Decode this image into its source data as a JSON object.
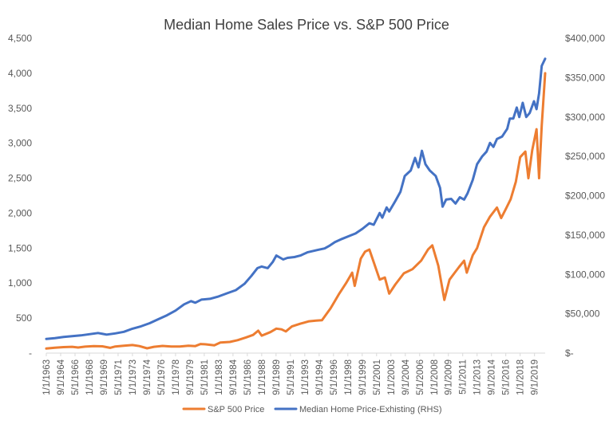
{
  "chart_data": {
    "type": "line",
    "title": "Median Home Sales Price vs. S&P 500 Price",
    "xlabel": "",
    "ylabel": "",
    "y_left": {
      "min": 0,
      "max": 4500,
      "step": 500,
      "grid": false
    },
    "y_right": {
      "min": 0,
      "max": 400000,
      "step": 50000
    },
    "left_tick_labels": [
      "-",
      "500",
      "1,000",
      "1,500",
      "2,000",
      "2,500",
      "3,000",
      "3,500",
      "4,000",
      "4,500"
    ],
    "right_tick_labels": [
      "$-",
      "$50,000",
      "$100,000",
      "$150,000",
      "$200,000",
      "$250,000",
      "$300,000",
      "$350,000",
      "$400,000"
    ],
    "x_range": [
      1963.0,
      2020.9
    ],
    "x_tick_labels": [
      "1/1/1963",
      "9/1/1964",
      "5/1/1966",
      "1/1/1968",
      "9/1/1969",
      "5/1/1971",
      "1/1/1973",
      "9/1/1974",
      "5/1/1976",
      "1/1/1978",
      "9/1/1979",
      "5/1/1981",
      "1/1/1983",
      "9/1/1984",
      "5/1/1986",
      "1/1/1988",
      "9/1/1989",
      "5/1/1991",
      "1/1/1993",
      "9/1/1994",
      "5/1/1996",
      "1/1/1998",
      "9/1/1999",
      "5/1/2001",
      "1/1/2003",
      "9/1/2004",
      "5/1/2006",
      "1/1/2008",
      "9/1/2009",
      "5/1/2011",
      "1/1/2013",
      "9/1/2014",
      "5/1/2016",
      "1/1/2018",
      "9/1/2019"
    ],
    "legend_position": "bottom",
    "series": [
      {
        "name": "S&P 500 Price",
        "axis": "left",
        "color": "#ED7D31",
        "points": [
          [
            1963.0,
            65
          ],
          [
            1964.0,
            78
          ],
          [
            1965.0,
            85
          ],
          [
            1966.0,
            90
          ],
          [
            1966.7,
            80
          ],
          [
            1967.5,
            92
          ],
          [
            1968.5,
            100
          ],
          [
            1969.5,
            97
          ],
          [
            1970.4,
            75
          ],
          [
            1971.0,
            95
          ],
          [
            1972.0,
            105
          ],
          [
            1973.0,
            115
          ],
          [
            1973.8,
            100
          ],
          [
            1974.7,
            68
          ],
          [
            1975.5,
            90
          ],
          [
            1976.5,
            102
          ],
          [
            1977.5,
            95
          ],
          [
            1978.5,
            95
          ],
          [
            1979.5,
            105
          ],
          [
            1980.3,
            100
          ],
          [
            1980.9,
            130
          ],
          [
            1981.5,
            125
          ],
          [
            1982.5,
            112
          ],
          [
            1983.2,
            150
          ],
          [
            1984.3,
            160
          ],
          [
            1985.2,
            185
          ],
          [
            1986.2,
            225
          ],
          [
            1987.0,
            260
          ],
          [
            1987.6,
            320
          ],
          [
            1988.0,
            250
          ],
          [
            1989.0,
            300
          ],
          [
            1989.7,
            350
          ],
          [
            1990.3,
            340
          ],
          [
            1990.8,
            310
          ],
          [
            1991.5,
            380
          ],
          [
            1992.5,
            420
          ],
          [
            1993.5,
            455
          ],
          [
            1994.3,
            465
          ],
          [
            1995.0,
            470
          ],
          [
            1996.0,
            640
          ],
          [
            1997.0,
            850
          ],
          [
            1997.8,
            1000
          ],
          [
            1998.5,
            1150
          ],
          [
            1998.8,
            960
          ],
          [
            1999.5,
            1350
          ],
          [
            2000.0,
            1450
          ],
          [
            2000.5,
            1480
          ],
          [
            2001.0,
            1300
          ],
          [
            2001.7,
            1050
          ],
          [
            2002.3,
            1080
          ],
          [
            2002.8,
            850
          ],
          [
            2003.5,
            980
          ],
          [
            2004.5,
            1140
          ],
          [
            2005.5,
            1200
          ],
          [
            2006.5,
            1320
          ],
          [
            2007.3,
            1480
          ],
          [
            2007.8,
            1540
          ],
          [
            2008.5,
            1250
          ],
          [
            2009.2,
            760
          ],
          [
            2009.8,
            1050
          ],
          [
            2010.4,
            1150
          ],
          [
            2010.9,
            1230
          ],
          [
            2011.5,
            1320
          ],
          [
            2011.8,
            1150
          ],
          [
            2012.5,
            1400
          ],
          [
            2013.0,
            1500
          ],
          [
            2013.8,
            1800
          ],
          [
            2014.5,
            1950
          ],
          [
            2015.3,
            2080
          ],
          [
            2015.8,
            1930
          ],
          [
            2016.3,
            2050
          ],
          [
            2016.9,
            2200
          ],
          [
            2017.5,
            2450
          ],
          [
            2018.0,
            2800
          ],
          [
            2018.6,
            2880
          ],
          [
            2018.95,
            2500
          ],
          [
            2019.4,
            2900
          ],
          [
            2019.9,
            3200
          ],
          [
            2020.2,
            2500
          ],
          [
            2020.5,
            3250
          ],
          [
            2020.9,
            4000
          ]
        ]
      },
      {
        "name": "Median Home Price-Exhisting (RHS)",
        "axis": "right",
        "color": "#4472C4",
        "points": [
          [
            1963.0,
            18000
          ],
          [
            1964.0,
            19000
          ],
          [
            1965.0,
            20500
          ],
          [
            1966.0,
            21500
          ],
          [
            1967.0,
            22500
          ],
          [
            1968.0,
            24000
          ],
          [
            1969.0,
            25500
          ],
          [
            1970.0,
            23500
          ],
          [
            1971.0,
            25000
          ],
          [
            1972.0,
            27000
          ],
          [
            1973.0,
            31000
          ],
          [
            1974.0,
            34000
          ],
          [
            1975.0,
            38000
          ],
          [
            1976.0,
            43000
          ],
          [
            1977.0,
            48000
          ],
          [
            1978.0,
            54000
          ],
          [
            1979.0,
            62000
          ],
          [
            1979.8,
            66000
          ],
          [
            1980.3,
            64000
          ],
          [
            1981.0,
            68000
          ],
          [
            1982.0,
            69000
          ],
          [
            1983.0,
            72000
          ],
          [
            1984.0,
            76000
          ],
          [
            1985.0,
            80000
          ],
          [
            1986.0,
            88000
          ],
          [
            1986.8,
            98000
          ],
          [
            1987.5,
            108000
          ],
          [
            1988.0,
            110000
          ],
          [
            1988.7,
            108000
          ],
          [
            1989.3,
            116000
          ],
          [
            1989.7,
            124000
          ],
          [
            1990.5,
            119000
          ],
          [
            1991.0,
            121000
          ],
          [
            1991.8,
            122000
          ],
          [
            1992.5,
            124000
          ],
          [
            1993.3,
            128000
          ],
          [
            1994.5,
            131000
          ],
          [
            1995.3,
            133000
          ],
          [
            1995.8,
            136000
          ],
          [
            1996.5,
            141000
          ],
          [
            1997.3,
            145000
          ],
          [
            1998.2,
            149000
          ],
          [
            1998.9,
            152000
          ],
          [
            1999.7,
            158000
          ],
          [
            2000.5,
            165000
          ],
          [
            2001.0,
            163000
          ],
          [
            2001.7,
            178000
          ],
          [
            2002.0,
            172000
          ],
          [
            2002.5,
            185000
          ],
          [
            2002.8,
            180000
          ],
          [
            2003.5,
            193000
          ],
          [
            2004.1,
            205000
          ],
          [
            2004.6,
            225000
          ],
          [
            2005.3,
            232000
          ],
          [
            2005.8,
            248000
          ],
          [
            2006.2,
            236000
          ],
          [
            2006.6,
            257000
          ],
          [
            2007.0,
            240000
          ],
          [
            2007.5,
            232000
          ],
          [
            2008.2,
            225000
          ],
          [
            2008.7,
            210000
          ],
          [
            2009.0,
            186000
          ],
          [
            2009.4,
            195000
          ],
          [
            2010.0,
            196000
          ],
          [
            2010.5,
            190000
          ],
          [
            2011.0,
            198000
          ],
          [
            2011.5,
            195000
          ],
          [
            2011.9,
            203000
          ],
          [
            2012.5,
            220000
          ],
          [
            2013.0,
            240000
          ],
          [
            2013.6,
            250000
          ],
          [
            2014.1,
            256000
          ],
          [
            2014.5,
            267000
          ],
          [
            2014.9,
            262000
          ],
          [
            2015.3,
            272000
          ],
          [
            2015.9,
            275000
          ],
          [
            2016.5,
            285000
          ],
          [
            2016.8,
            298000
          ],
          [
            2017.2,
            298000
          ],
          [
            2017.6,
            312000
          ],
          [
            2017.9,
            300000
          ],
          [
            2018.3,
            318000
          ],
          [
            2018.7,
            300000
          ],
          [
            2019.1,
            305000
          ],
          [
            2019.6,
            320000
          ],
          [
            2019.9,
            310000
          ],
          [
            2020.2,
            330000
          ],
          [
            2020.5,
            365000
          ],
          [
            2020.9,
            374000
          ]
        ]
      }
    ]
  }
}
